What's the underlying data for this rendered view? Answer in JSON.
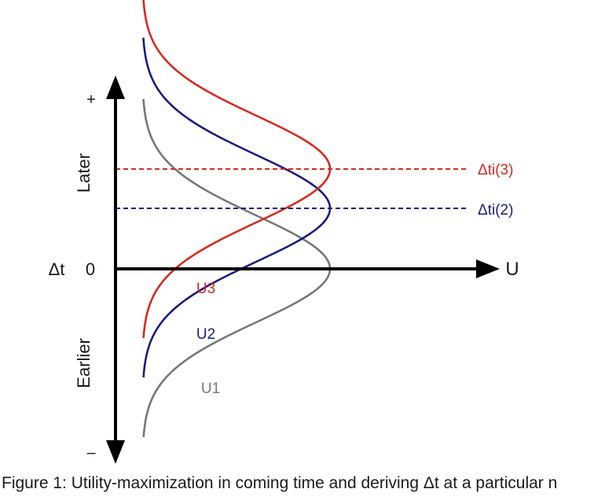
{
  "diagram": {
    "y_axis": {
      "symbol": "Δt",
      "origin_label": "0",
      "top_sign": "+",
      "bottom_sign": "–",
      "upper_label": "Later",
      "lower_label": "Earlier"
    },
    "x_axis": {
      "label": "U"
    },
    "curves": [
      {
        "label": "U1",
        "color": "#777777"
      },
      {
        "label": "U2",
        "color": "#1c1c78"
      },
      {
        "label": "U3",
        "color": "#d42a20"
      }
    ],
    "markers": [
      {
        "label": "Δti(3)",
        "color": "#d42a20"
      },
      {
        "label": "Δti(2)",
        "color": "#1c1c78"
      }
    ]
  },
  "caption": "Figure 1: Utility-maximization in coming time and deriving Δt at a particular n"
}
